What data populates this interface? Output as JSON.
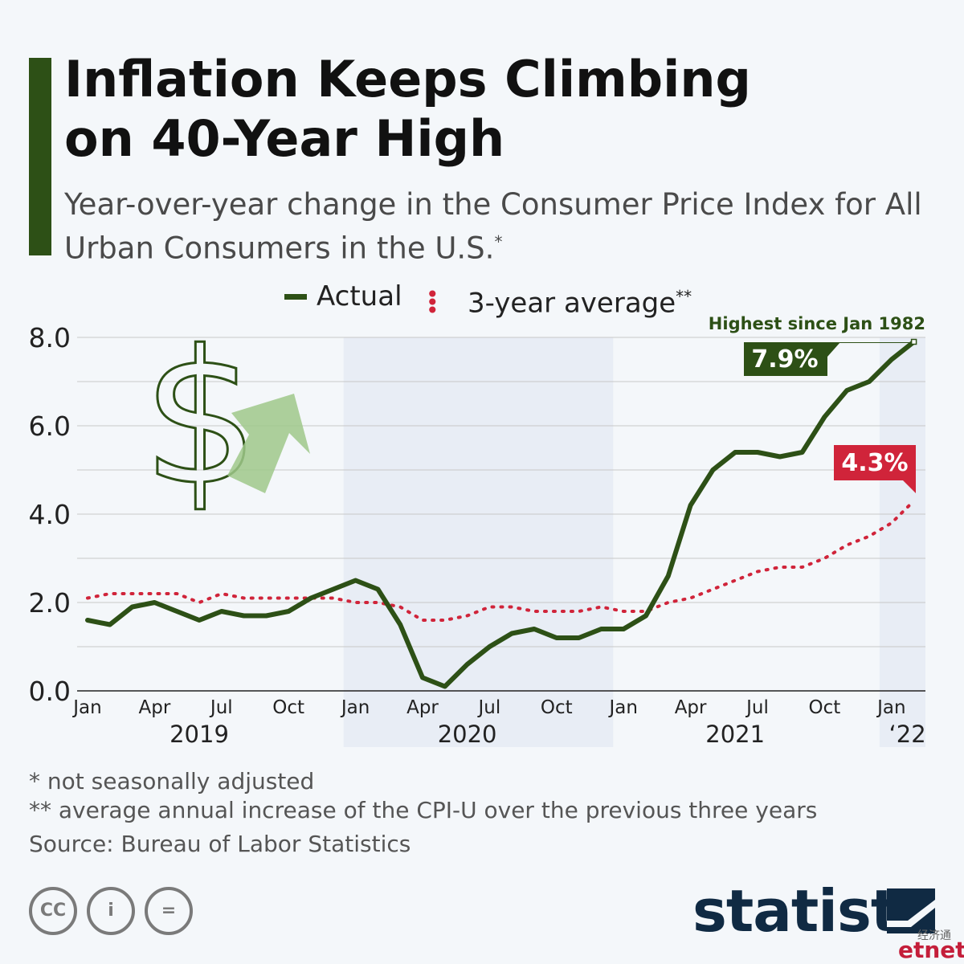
{
  "header": {
    "title_line1": "Inflation Keeps Climbing",
    "title_line2": "on 40-Year High",
    "subtitle": "Year-over-year change in the Consumer Price Index for All Urban Consumers in the U.S.",
    "subtitle_mark": "*"
  },
  "legend": {
    "actual": "Actual",
    "average": "3-year average",
    "average_mark": "**"
  },
  "colors": {
    "actual": "#2d5016",
    "average": "#d0243a",
    "shade": "#e8edf5",
    "accent": "#2d5016",
    "icon_green": "#9fc88a"
  },
  "icons": [
    "dollar-sign-icon",
    "up-arrow-icon"
  ],
  "chart_data": {
    "type": "line",
    "title": "Inflation Keeps Climbing on 40-Year High",
    "ylim": [
      0,
      8
    ],
    "ytick_labels": [
      "0.0",
      "2.0",
      "4.0",
      "6.0",
      "8.0"
    ],
    "grid": true,
    "x_months": [
      "2019-01",
      "2019-02",
      "2019-03",
      "2019-04",
      "2019-05",
      "2019-06",
      "2019-07",
      "2019-08",
      "2019-09",
      "2019-10",
      "2019-11",
      "2019-12",
      "2020-01",
      "2020-02",
      "2020-03",
      "2020-04",
      "2020-05",
      "2020-06",
      "2020-07",
      "2020-08",
      "2020-09",
      "2020-10",
      "2020-11",
      "2020-12",
      "2021-01",
      "2021-02",
      "2021-03",
      "2021-04",
      "2021-05",
      "2021-06",
      "2021-07",
      "2021-08",
      "2021-09",
      "2021-10",
      "2021-11",
      "2021-12",
      "2022-01",
      "2022-02"
    ],
    "month_tick_labels": [
      "Jan",
      "Apr",
      "Jul",
      "Oct",
      "Jan",
      "Apr",
      "Jul",
      "Oct",
      "Jan",
      "Apr",
      "Jul",
      "Oct",
      "Jan"
    ],
    "month_tick_dates": [
      "2019-01",
      "2019-04",
      "2019-07",
      "2019-10",
      "2020-01",
      "2020-04",
      "2020-07",
      "2020-10",
      "2021-01",
      "2021-04",
      "2021-07",
      "2021-10",
      "2022-01"
    ],
    "year_labels": [
      "2019",
      "2020",
      "2021",
      "‘22"
    ],
    "year_label_dates": [
      "2019-06",
      "2020-06",
      "2021-06",
      "2022-02"
    ],
    "shaded_periods": [
      [
        "2020-01",
        "2020-12"
      ],
      [
        "2022-01",
        "2022-02"
      ]
    ],
    "series": [
      {
        "name": "Actual",
        "values": [
          1.6,
          1.5,
          1.9,
          2.0,
          1.8,
          1.6,
          1.8,
          1.7,
          1.7,
          1.8,
          2.1,
          2.3,
          2.5,
          2.3,
          1.5,
          0.3,
          0.1,
          0.6,
          1.0,
          1.3,
          1.4,
          1.2,
          1.2,
          1.4,
          1.4,
          1.7,
          2.6,
          4.2,
          5.0,
          5.4,
          5.4,
          5.3,
          5.4,
          6.2,
          6.8,
          7.0,
          7.5,
          7.9
        ]
      },
      {
        "name": "3-year average",
        "values": [
          2.1,
          2.2,
          2.2,
          2.2,
          2.2,
          2.0,
          2.2,
          2.1,
          2.1,
          2.1,
          2.1,
          2.1,
          2.0,
          2.0,
          1.9,
          1.6,
          1.6,
          1.7,
          1.9,
          1.9,
          1.8,
          1.8,
          1.8,
          1.9,
          1.8,
          1.8,
          2.0,
          2.1,
          2.3,
          2.5,
          2.7,
          2.8,
          2.8,
          3.0,
          3.3,
          3.5,
          3.8,
          4.3
        ]
      }
    ],
    "annotations": {
      "actual_callout": "7.9%",
      "average_callout": "4.3%",
      "note": "Highest since Jan 1982"
    }
  },
  "footnotes": {
    "not_seasonally": "*   not seasonally adjusted",
    "three_year": "** average annual increase of the CPI-U over the previous three years",
    "source": "Source: Bureau of Labor Statistics"
  },
  "license": {
    "cc": "CC",
    "by": "i",
    "nd": "="
  },
  "brand": {
    "name": "statista",
    "watermark_cn": "经济通",
    "watermark_et": "etnet"
  }
}
